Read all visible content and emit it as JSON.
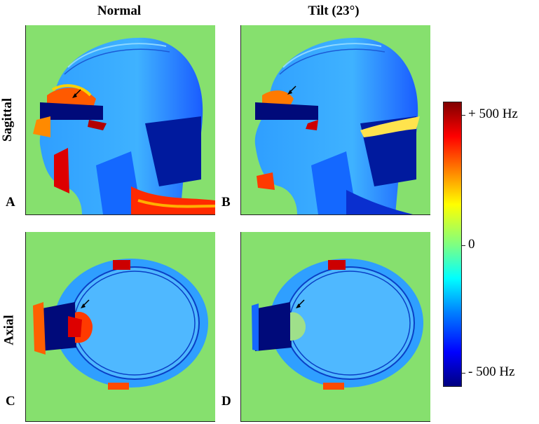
{
  "columns": {
    "left": "Normal",
    "right": "Tilt (23°)"
  },
  "rows": {
    "top": "Sagittal",
    "bottom": "Axial"
  },
  "panels": {
    "a": "A",
    "b": "B",
    "c": "C",
    "d": "D"
  },
  "colorbar": {
    "max_label": "+ 500 Hz",
    "mid_label": "0",
    "min_label": "- 500 Hz",
    "colormap": "jet",
    "colors": [
      "#800000",
      "#ff0000",
      "#ff8000",
      "#ffff00",
      "#80ff80",
      "#00ffff",
      "#0080ff",
      "#0000ff",
      "#000080"
    ]
  },
  "background_color": "#86e06e"
}
